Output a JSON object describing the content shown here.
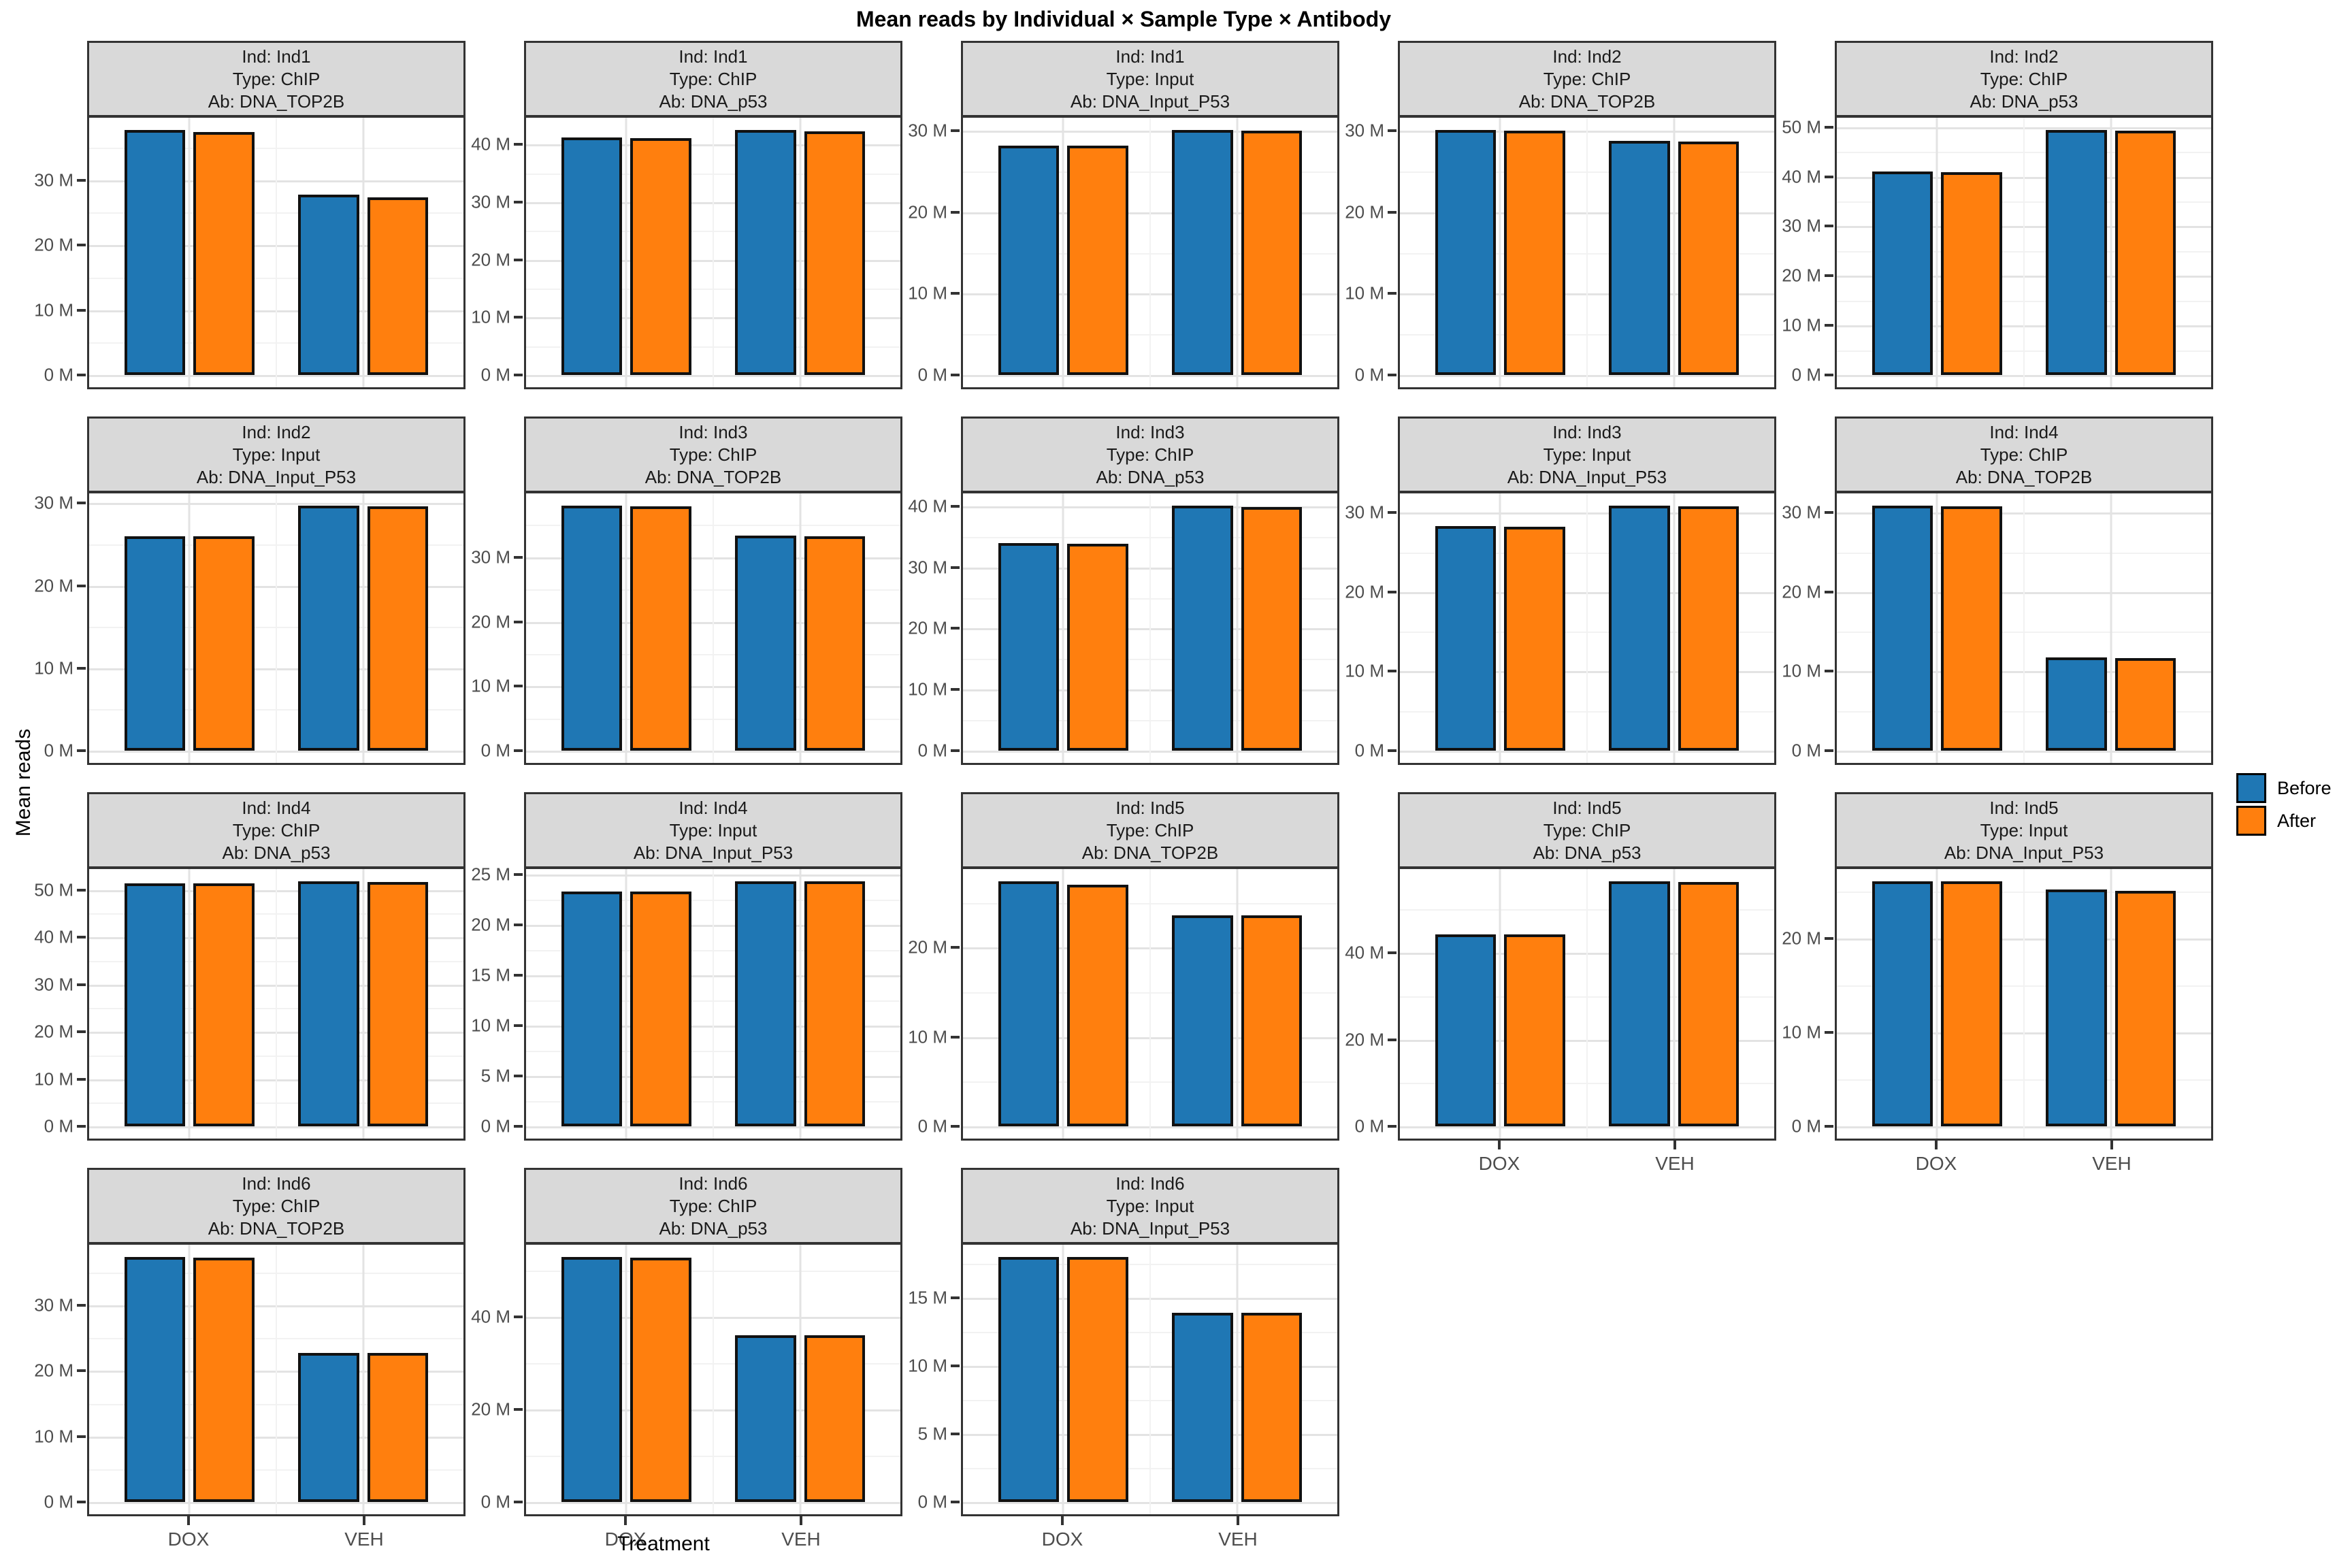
{
  "title": "Mean reads by Individual × Sample Type × Antibody",
  "y_axis_title": "Mean reads",
  "x_axis_title": "Treatment",
  "legend": {
    "items": [
      {
        "label": "Before",
        "color": "#1F77B4"
      },
      {
        "label": "After",
        "color": "#FF7F0E"
      }
    ]
  },
  "colors": {
    "before_blue": "#1F77B4",
    "after_orange": "#FF7F0E",
    "strip_background": "#D9D9D9",
    "panel_border": "#333333",
    "grid_major": "#E3E3E3",
    "grid_minor": "#F2F2F2",
    "tick_text": "#4D4D4D",
    "bar_border": "#111111"
  },
  "chart_data": {
    "type": "bar",
    "faceted": true,
    "grid": {
      "rows": 4,
      "cols": 5
    },
    "x_categories": [
      "DOX",
      "VEH"
    ],
    "series": [
      "Before",
      "After"
    ],
    "series_colors": {
      "Before": "#1F77B4",
      "After": "#FF7F0E"
    },
    "unit_suffix": " M",
    "value_unit": "million reads",
    "legend_position": "right",
    "facets": [
      {
        "strip": [
          "Ind: Ind1",
          "Type: ChIP",
          "Ab: DNA_TOP2B"
        ],
        "ind": "Ind1",
        "sample_type": "ChIP",
        "antibody": "DNA_TOP2B",
        "y_ticks_m": [
          0,
          10,
          20,
          30
        ],
        "values_m": {
          "DOX": {
            "Before": 37.7,
            "After": 37.4
          },
          "VEH": {
            "Before": 27.8,
            "After": 27.3
          }
        }
      },
      {
        "strip": [
          "Ind: Ind1",
          "Type: ChIP",
          "Ab: DNA_p53"
        ],
        "ind": "Ind1",
        "sample_type": "ChIP",
        "antibody": "DNA_p53",
        "y_ticks_m": [
          0,
          10,
          20,
          30,
          40
        ],
        "values_m": {
          "DOX": {
            "Before": 41.2,
            "After": 41.1
          },
          "VEH": {
            "Before": 42.5,
            "After": 42.3
          }
        }
      },
      {
        "strip": [
          "Ind: Ind1",
          "Type: Input",
          "Ab: DNA_Input_P53"
        ],
        "ind": "Ind1",
        "sample_type": "Input",
        "antibody": "DNA_Input_P53",
        "y_ticks_m": [
          0,
          10,
          20,
          30
        ],
        "values_m": {
          "DOX": {
            "Before": 28.2,
            "After": 28.2
          },
          "VEH": {
            "Before": 30.1,
            "After": 30.0
          }
        }
      },
      {
        "strip": [
          "Ind: Ind2",
          "Type: ChIP",
          "Ab: DNA_TOP2B"
        ],
        "ind": "Ind2",
        "sample_type": "ChIP",
        "antibody": "DNA_TOP2B",
        "y_ticks_m": [
          0,
          10,
          20,
          30
        ],
        "values_m": {
          "DOX": {
            "Before": 30.1,
            "After": 30.0
          },
          "VEH": {
            "Before": 28.8,
            "After": 28.7
          }
        }
      },
      {
        "strip": [
          "Ind: Ind2",
          "Type: ChIP",
          "Ab: DNA_p53"
        ],
        "ind": "Ind2",
        "sample_type": "ChIP",
        "antibody": "DNA_p53",
        "y_ticks_m": [
          0,
          10,
          20,
          30,
          40,
          50
        ],
        "values_m": {
          "DOX": {
            "Before": 41.0,
            "After": 40.9
          },
          "VEH": {
            "Before": 49.4,
            "After": 49.2
          }
        }
      },
      {
        "strip": [
          "Ind: Ind2",
          "Type: Input",
          "Ab: DNA_Input_P53"
        ],
        "ind": "Ind2",
        "sample_type": "Input",
        "antibody": "DNA_Input_P53",
        "y_ticks_m": [
          0,
          10,
          20,
          30
        ],
        "values_m": {
          "DOX": {
            "Before": 26.0,
            "After": 26.0
          },
          "VEH": {
            "Before": 29.7,
            "After": 29.6
          }
        }
      },
      {
        "strip": [
          "Ind: Ind3",
          "Type: ChIP",
          "Ab: DNA_TOP2B"
        ],
        "ind": "Ind3",
        "sample_type": "ChIP",
        "antibody": "DNA_TOP2B",
        "y_ticks_m": [
          0,
          10,
          20,
          30
        ],
        "values_m": {
          "DOX": {
            "Before": 38.0,
            "After": 37.9
          },
          "VEH": {
            "Before": 33.4,
            "After": 33.3
          }
        }
      },
      {
        "strip": [
          "Ind: Ind3",
          "Type: ChIP",
          "Ab: DNA_p53"
        ],
        "ind": "Ind3",
        "sample_type": "ChIP",
        "antibody": "DNA_p53",
        "y_ticks_m": [
          0,
          10,
          20,
          30,
          40
        ],
        "values_m": {
          "DOX": {
            "Before": 34.0,
            "After": 33.9
          },
          "VEH": {
            "Before": 40.1,
            "After": 39.9
          }
        }
      },
      {
        "strip": [
          "Ind: Ind3",
          "Type: Input",
          "Ab: DNA_Input_P53"
        ],
        "ind": "Ind3",
        "sample_type": "Input",
        "antibody": "DNA_Input_P53",
        "y_ticks_m": [
          0,
          10,
          20,
          30
        ],
        "values_m": {
          "DOX": {
            "Before": 28.3,
            "After": 28.2
          },
          "VEH": {
            "Before": 30.9,
            "After": 30.8
          }
        }
      },
      {
        "strip": [
          "Ind: Ind4",
          "Type: ChIP",
          "Ab: DNA_TOP2B"
        ],
        "ind": "Ind4",
        "sample_type": "ChIP",
        "antibody": "DNA_TOP2B",
        "y_ticks_m": [
          0,
          10,
          20,
          30
        ],
        "values_m": {
          "DOX": {
            "Before": 30.9,
            "After": 30.8
          },
          "VEH": {
            "Before": 11.8,
            "After": 11.7
          }
        }
      },
      {
        "strip": [
          "Ind: Ind4",
          "Type: ChIP",
          "Ab: DNA_p53"
        ],
        "ind": "Ind4",
        "sample_type": "ChIP",
        "antibody": "DNA_p53",
        "y_ticks_m": [
          0,
          10,
          20,
          30,
          40,
          50
        ],
        "values_m": {
          "DOX": {
            "Before": 51.4,
            "After": 51.4
          },
          "VEH": {
            "Before": 51.8,
            "After": 51.7
          }
        }
      },
      {
        "strip": [
          "Ind: Ind4",
          "Type: Input",
          "Ab: DNA_Input_P53"
        ],
        "ind": "Ind4",
        "sample_type": "Input",
        "antibody": "DNA_Input_P53",
        "y_ticks_m": [
          0,
          5,
          10,
          15,
          20,
          25
        ],
        "values_m": {
          "DOX": {
            "Before": 23.3,
            "After": 23.3
          },
          "VEH": {
            "Before": 24.3,
            "After": 24.3
          }
        }
      },
      {
        "strip": [
          "Ind: Ind5",
          "Type: ChIP",
          "Ab: DNA_TOP2B"
        ],
        "ind": "Ind5",
        "sample_type": "ChIP",
        "antibody": "DNA_TOP2B",
        "y_ticks_m": [
          0,
          10,
          20
        ],
        "values_m": {
          "DOX": {
            "Before": 27.4,
            "After": 27.0
          },
          "VEH": {
            "Before": 23.6,
            "After": 23.6
          }
        }
      },
      {
        "strip": [
          "Ind: Ind5",
          "Type: ChIP",
          "Ab: DNA_p53"
        ],
        "ind": "Ind5",
        "sample_type": "ChIP",
        "antibody": "DNA_p53",
        "y_ticks_m": [
          0,
          20,
          40
        ],
        "values_m": {
          "DOX": {
            "Before": 44.3,
            "After": 44.3
          },
          "VEH": {
            "Before": 56.5,
            "After": 56.4
          }
        }
      },
      {
        "strip": [
          "Ind: Ind5",
          "Type: Input",
          "Ab: DNA_Input_P53"
        ],
        "ind": "Ind5",
        "sample_type": "Input",
        "antibody": "DNA_Input_P53",
        "y_ticks_m": [
          0,
          10,
          20
        ],
        "values_m": {
          "DOX": {
            "Before": 26.1,
            "After": 26.1
          },
          "VEH": {
            "Before": 25.2,
            "After": 25.1
          }
        }
      },
      {
        "strip": [
          "Ind: Ind6",
          "Type: ChIP",
          "Ab: DNA_TOP2B"
        ],
        "ind": "Ind6",
        "sample_type": "ChIP",
        "antibody": "DNA_TOP2B",
        "y_ticks_m": [
          0,
          10,
          20,
          30
        ],
        "values_m": {
          "DOX": {
            "Before": 37.4,
            "After": 37.3
          },
          "VEH": {
            "Before": 22.7,
            "After": 22.7
          }
        }
      },
      {
        "strip": [
          "Ind: Ind6",
          "Type: ChIP",
          "Ab: DNA_p53"
        ],
        "ind": "Ind6",
        "sample_type": "ChIP",
        "antibody": "DNA_p53",
        "y_ticks_m": [
          0,
          20,
          40
        ],
        "values_m": {
          "DOX": {
            "Before": 53.0,
            "After": 52.9
          },
          "VEH": {
            "Before": 36.1,
            "After": 36.0
          }
        }
      },
      {
        "strip": [
          "Ind: Ind6",
          "Type: Input",
          "Ab: DNA_Input_P53"
        ],
        "ind": "Ind6",
        "sample_type": "Input",
        "antibody": "DNA_Input_P53",
        "y_ticks_m": [
          0,
          5,
          10,
          15
        ],
        "values_m": {
          "DOX": {
            "Before": 18.0,
            "After": 18.0
          },
          "VEH": {
            "Before": 13.9,
            "After": 13.9
          }
        }
      }
    ]
  }
}
